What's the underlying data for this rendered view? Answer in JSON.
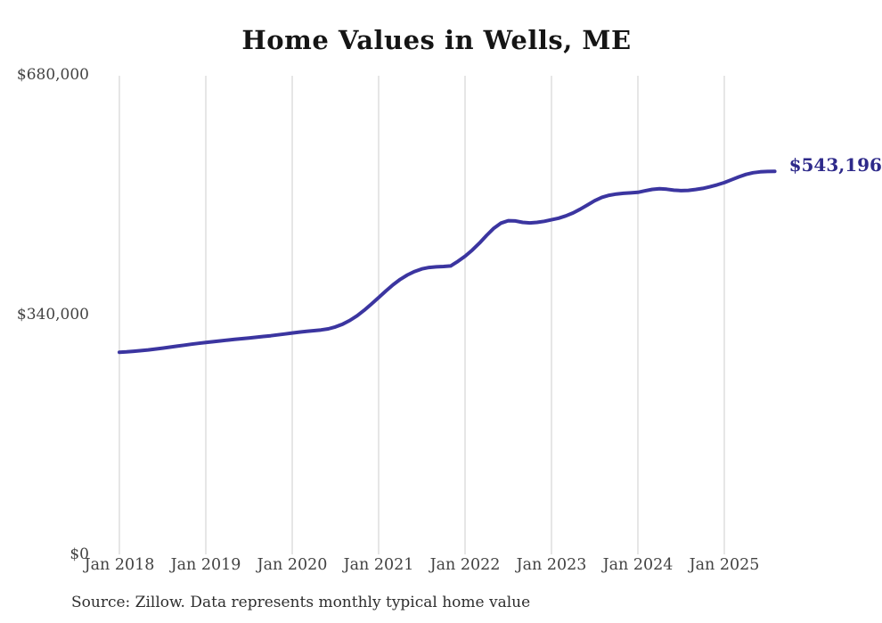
{
  "chart_data": {
    "type": "line",
    "title": "Home Values in Wells, ME",
    "source": "Source: Zillow. Data represents monthly typical home value",
    "end_label": "$543,196",
    "latest_value": 543196,
    "series_name": "Monthly typical home value",
    "frequency": "monthly",
    "x_start": "2018-01",
    "x_end": "2025-08",
    "x_tick_labels": [
      "Jan 2018",
      "Jan 2019",
      "Jan 2020",
      "Jan 2021",
      "Jan 2022",
      "Jan 2023",
      "Jan 2024",
      "Jan 2025"
    ],
    "y_ticks": [
      {
        "value": 0,
        "label": "$0"
      },
      {
        "value": 340000,
        "label": "$340,000"
      },
      {
        "value": 680000,
        "label": "$680,000"
      }
    ],
    "ylim": [
      0,
      680000
    ],
    "grid": "vertical-yearly",
    "colors": {
      "line": "#3b35a0",
      "end_label": "#2e2a8a",
      "gridline": "#cccccc",
      "tick_text": "#424242",
      "title_text": "#151515"
    },
    "values": [
      286500,
      287200,
      288000,
      288900,
      290000,
      291200,
      292500,
      293900,
      295300,
      296700,
      298000,
      299300,
      300500,
      301600,
      302700,
      303800,
      304900,
      305900,
      306900,
      307900,
      309000,
      310100,
      311300,
      312600,
      313900,
      315200,
      316400,
      317300,
      318200,
      319800,
      322500,
      326500,
      331800,
      338400,
      346200,
      355000,
      364200,
      373500,
      382300,
      390000,
      396300,
      401200,
      404800,
      406900,
      407800,
      408200,
      409000,
      415500,
      422800,
      431500,
      441500,
      452500,
      462500,
      469800,
      473200,
      472800,
      470800,
      470000,
      470800,
      472300,
      474500,
      476800,
      480000,
      484200,
      489500,
      495500,
      501500,
      506300,
      509300,
      511000,
      512000,
      512600,
      513400,
      515500,
      517600,
      518600,
      517800,
      516500,
      515800,
      516200,
      517400,
      519000,
      521300,
      524000,
      527200,
      531200,
      535300,
      538800,
      541200,
      542500,
      543000,
      543196
    ]
  }
}
